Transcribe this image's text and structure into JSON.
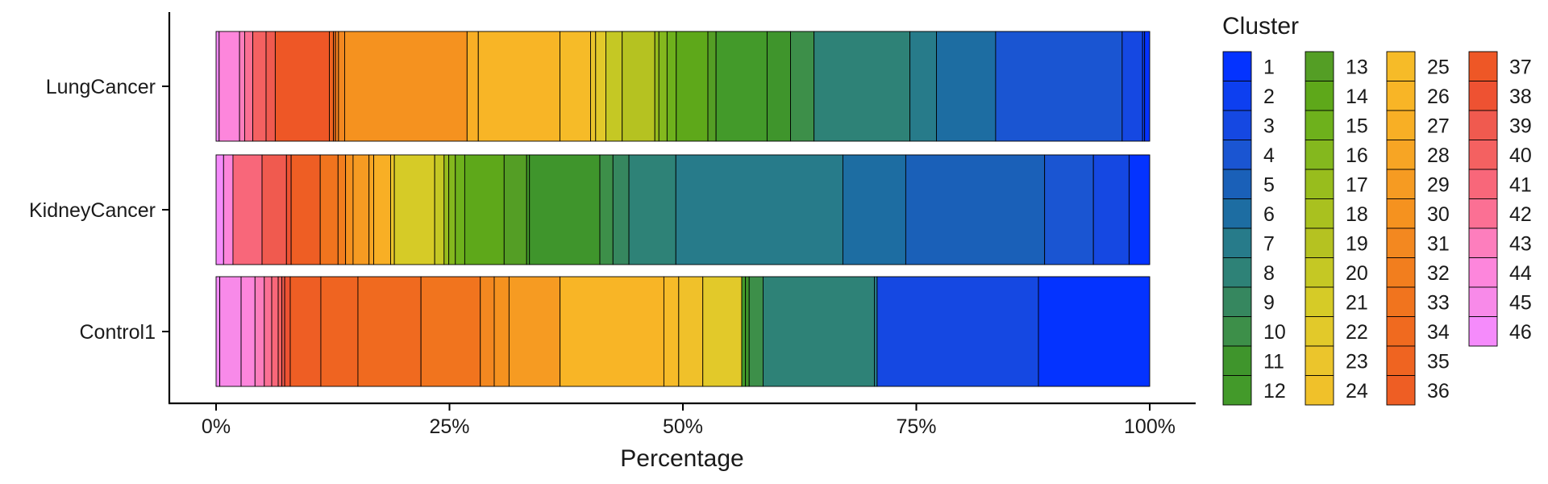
{
  "chart_data": {
    "type": "bar",
    "orientation": "horizontal",
    "stacked": true,
    "percent": true,
    "title": "",
    "xlabel": "Percentage",
    "ylabel": "",
    "xlim": [
      0,
      100
    ],
    "x_ticks": [
      0,
      25,
      50,
      75,
      100
    ],
    "x_tick_labels": [
      "0%",
      "25%",
      "50%",
      "75%",
      "100%"
    ],
    "categories": [
      "LungCancer",
      "KidneyCancer",
      "Control1"
    ],
    "grid": false,
    "legend": {
      "title": "Cluster",
      "position": "right",
      "columns": 4
    },
    "clusters": [
      "1",
      "2",
      "3",
      "4",
      "5",
      "6",
      "7",
      "8",
      "9",
      "10",
      "11",
      "12",
      "13",
      "14",
      "15",
      "16",
      "17",
      "18",
      "19",
      "20",
      "21",
      "22",
      "23",
      "24",
      "25",
      "26",
      "27",
      "28",
      "29",
      "30",
      "31",
      "32",
      "33",
      "34",
      "35",
      "36",
      "37",
      "38",
      "39",
      "40",
      "41",
      "42",
      "43",
      "44",
      "45",
      "46"
    ],
    "colors": [
      "#0433FF",
      "#0D3FF0",
      "#1548E2",
      "#1A55D2",
      "#1A60B8",
      "#1D6DA2",
      "#277B8A",
      "#2E8277",
      "#36875F",
      "#3D8F49",
      "#3F952C",
      "#439A2A",
      "#549E25",
      "#5EA81A",
      "#6EB11C",
      "#84B81E",
      "#98BD1D",
      "#A9C11F",
      "#B5C221",
      "#C5C824",
      "#D6CB27",
      "#E2C92A",
      "#EBC52C",
      "#F0C12A",
      "#F6BB28",
      "#F8B526",
      "#F8AF25",
      "#F7A524",
      "#F69B22",
      "#F5921F",
      "#F38820",
      "#F27E1E",
      "#F1741E",
      "#F06A1F",
      "#EF6421",
      "#EE5E24",
      "#EE5726",
      "#EE5232",
      "#F05A4F",
      "#F46161",
      "#F8677A",
      "#FB7094",
      "#FD7EBD",
      "#FD86DC",
      "#F88AE9",
      "#F58BFB"
    ],
    "series": [
      {
        "name": "1",
        "values": [
          0.5,
          2.2,
          12.0
        ]
      },
      {
        "name": "2",
        "values": [
          0.2,
          0.0,
          0.0
        ]
      },
      {
        "name": "3",
        "values": [
          2.0,
          3.8,
          17.4
        ]
      },
      {
        "name": "4",
        "values": [
          12.4,
          5.2,
          0.0
        ]
      },
      {
        "name": "5",
        "values": [
          0.0,
          14.8,
          0.0
        ]
      },
      {
        "name": "6",
        "values": [
          5.8,
          6.7,
          0.0
        ]
      },
      {
        "name": "7",
        "values": [
          2.6,
          17.8,
          0.3
        ]
      },
      {
        "name": "8",
        "values": [
          9.4,
          5.0,
          12.0
        ]
      },
      {
        "name": "9",
        "values": [
          0.0,
          1.7,
          0.0
        ]
      },
      {
        "name": "10",
        "values": [
          2.3,
          1.4,
          1.5
        ]
      },
      {
        "name": "11",
        "values": [
          2.3,
          7.5,
          0.4
        ]
      },
      {
        "name": "12",
        "values": [
          5.0,
          0.3,
          0.4
        ]
      },
      {
        "name": "13",
        "values": [
          0.8,
          2.4,
          0.0
        ]
      },
      {
        "name": "14",
        "values": [
          3.1,
          4.2,
          0.0
        ]
      },
      {
        "name": "15",
        "values": [
          0.9,
          1.0,
          0.0
        ]
      },
      {
        "name": "16",
        "values": [
          0.8,
          0.7,
          0.0
        ]
      },
      {
        "name": "17",
        "values": [
          0.4,
          0.5,
          0.0
        ]
      },
      {
        "name": "18",
        "values": [
          0.0,
          0.0,
          0.0
        ]
      },
      {
        "name": "19",
        "values": [
          3.2,
          0.0,
          0.0
        ]
      },
      {
        "name": "20",
        "values": [
          1.6,
          1.0,
          0.0
        ]
      },
      {
        "name": "21",
        "values": [
          0.0,
          4.3,
          0.0
        ]
      },
      {
        "name": "22",
        "values": [
          1.0,
          0.0,
          4.2
        ]
      },
      {
        "name": "23",
        "values": [
          0.5,
          0.4,
          0.0
        ]
      },
      {
        "name": "24",
        "values": [
          0.0,
          0.0,
          2.6
        ]
      },
      {
        "name": "25",
        "values": [
          3.0,
          0.0,
          1.6
        ]
      },
      {
        "name": "26",
        "values": [
          8.0,
          0.0,
          11.2
        ]
      },
      {
        "name": "27",
        "values": [
          1.1,
          1.8,
          0.0
        ]
      },
      {
        "name": "28",
        "values": [
          0.0,
          0.5,
          0.0
        ]
      },
      {
        "name": "29",
        "values": [
          0.0,
          1.7,
          5.5
        ]
      },
      {
        "name": "30",
        "values": [
          12.0,
          0.8,
          1.6
        ]
      },
      {
        "name": "31",
        "values": [
          0.6,
          0.0,
          1.5
        ]
      },
      {
        "name": "32",
        "values": [
          0.3,
          0.8,
          0.0
        ]
      },
      {
        "name": "33",
        "values": [
          0.0,
          1.9,
          6.4
        ]
      },
      {
        "name": "34",
        "values": [
          0.2,
          0.0,
          6.8
        ]
      },
      {
        "name": "35",
        "values": [
          0.4,
          0.0,
          4.0
        ]
      },
      {
        "name": "36",
        "values": [
          0.0,
          3.1,
          3.3
        ]
      },
      {
        "name": "37",
        "values": [
          5.3,
          0.0,
          0.0
        ]
      },
      {
        "name": "38",
        "values": [
          0.0,
          0.5,
          0.6
        ]
      },
      {
        "name": "39",
        "values": [
          0.9,
          2.6,
          0.3
        ]
      },
      {
        "name": "40",
        "values": [
          1.3,
          0.0,
          0.4
        ]
      },
      {
        "name": "41",
        "values": [
          0.0,
          3.1,
          0.7
        ]
      },
      {
        "name": "42",
        "values": [
          0.8,
          0.0,
          0.8
        ]
      },
      {
        "name": "43",
        "values": [
          0.5,
          0.0,
          1.0
        ]
      },
      {
        "name": "44",
        "values": [
          2.0,
          1.0,
          1.5
        ]
      },
      {
        "name": "45",
        "values": [
          0.0,
          0.0,
          2.3
        ]
      },
      {
        "name": "46",
        "values": [
          0.3,
          0.8,
          0.4
        ]
      }
    ]
  }
}
